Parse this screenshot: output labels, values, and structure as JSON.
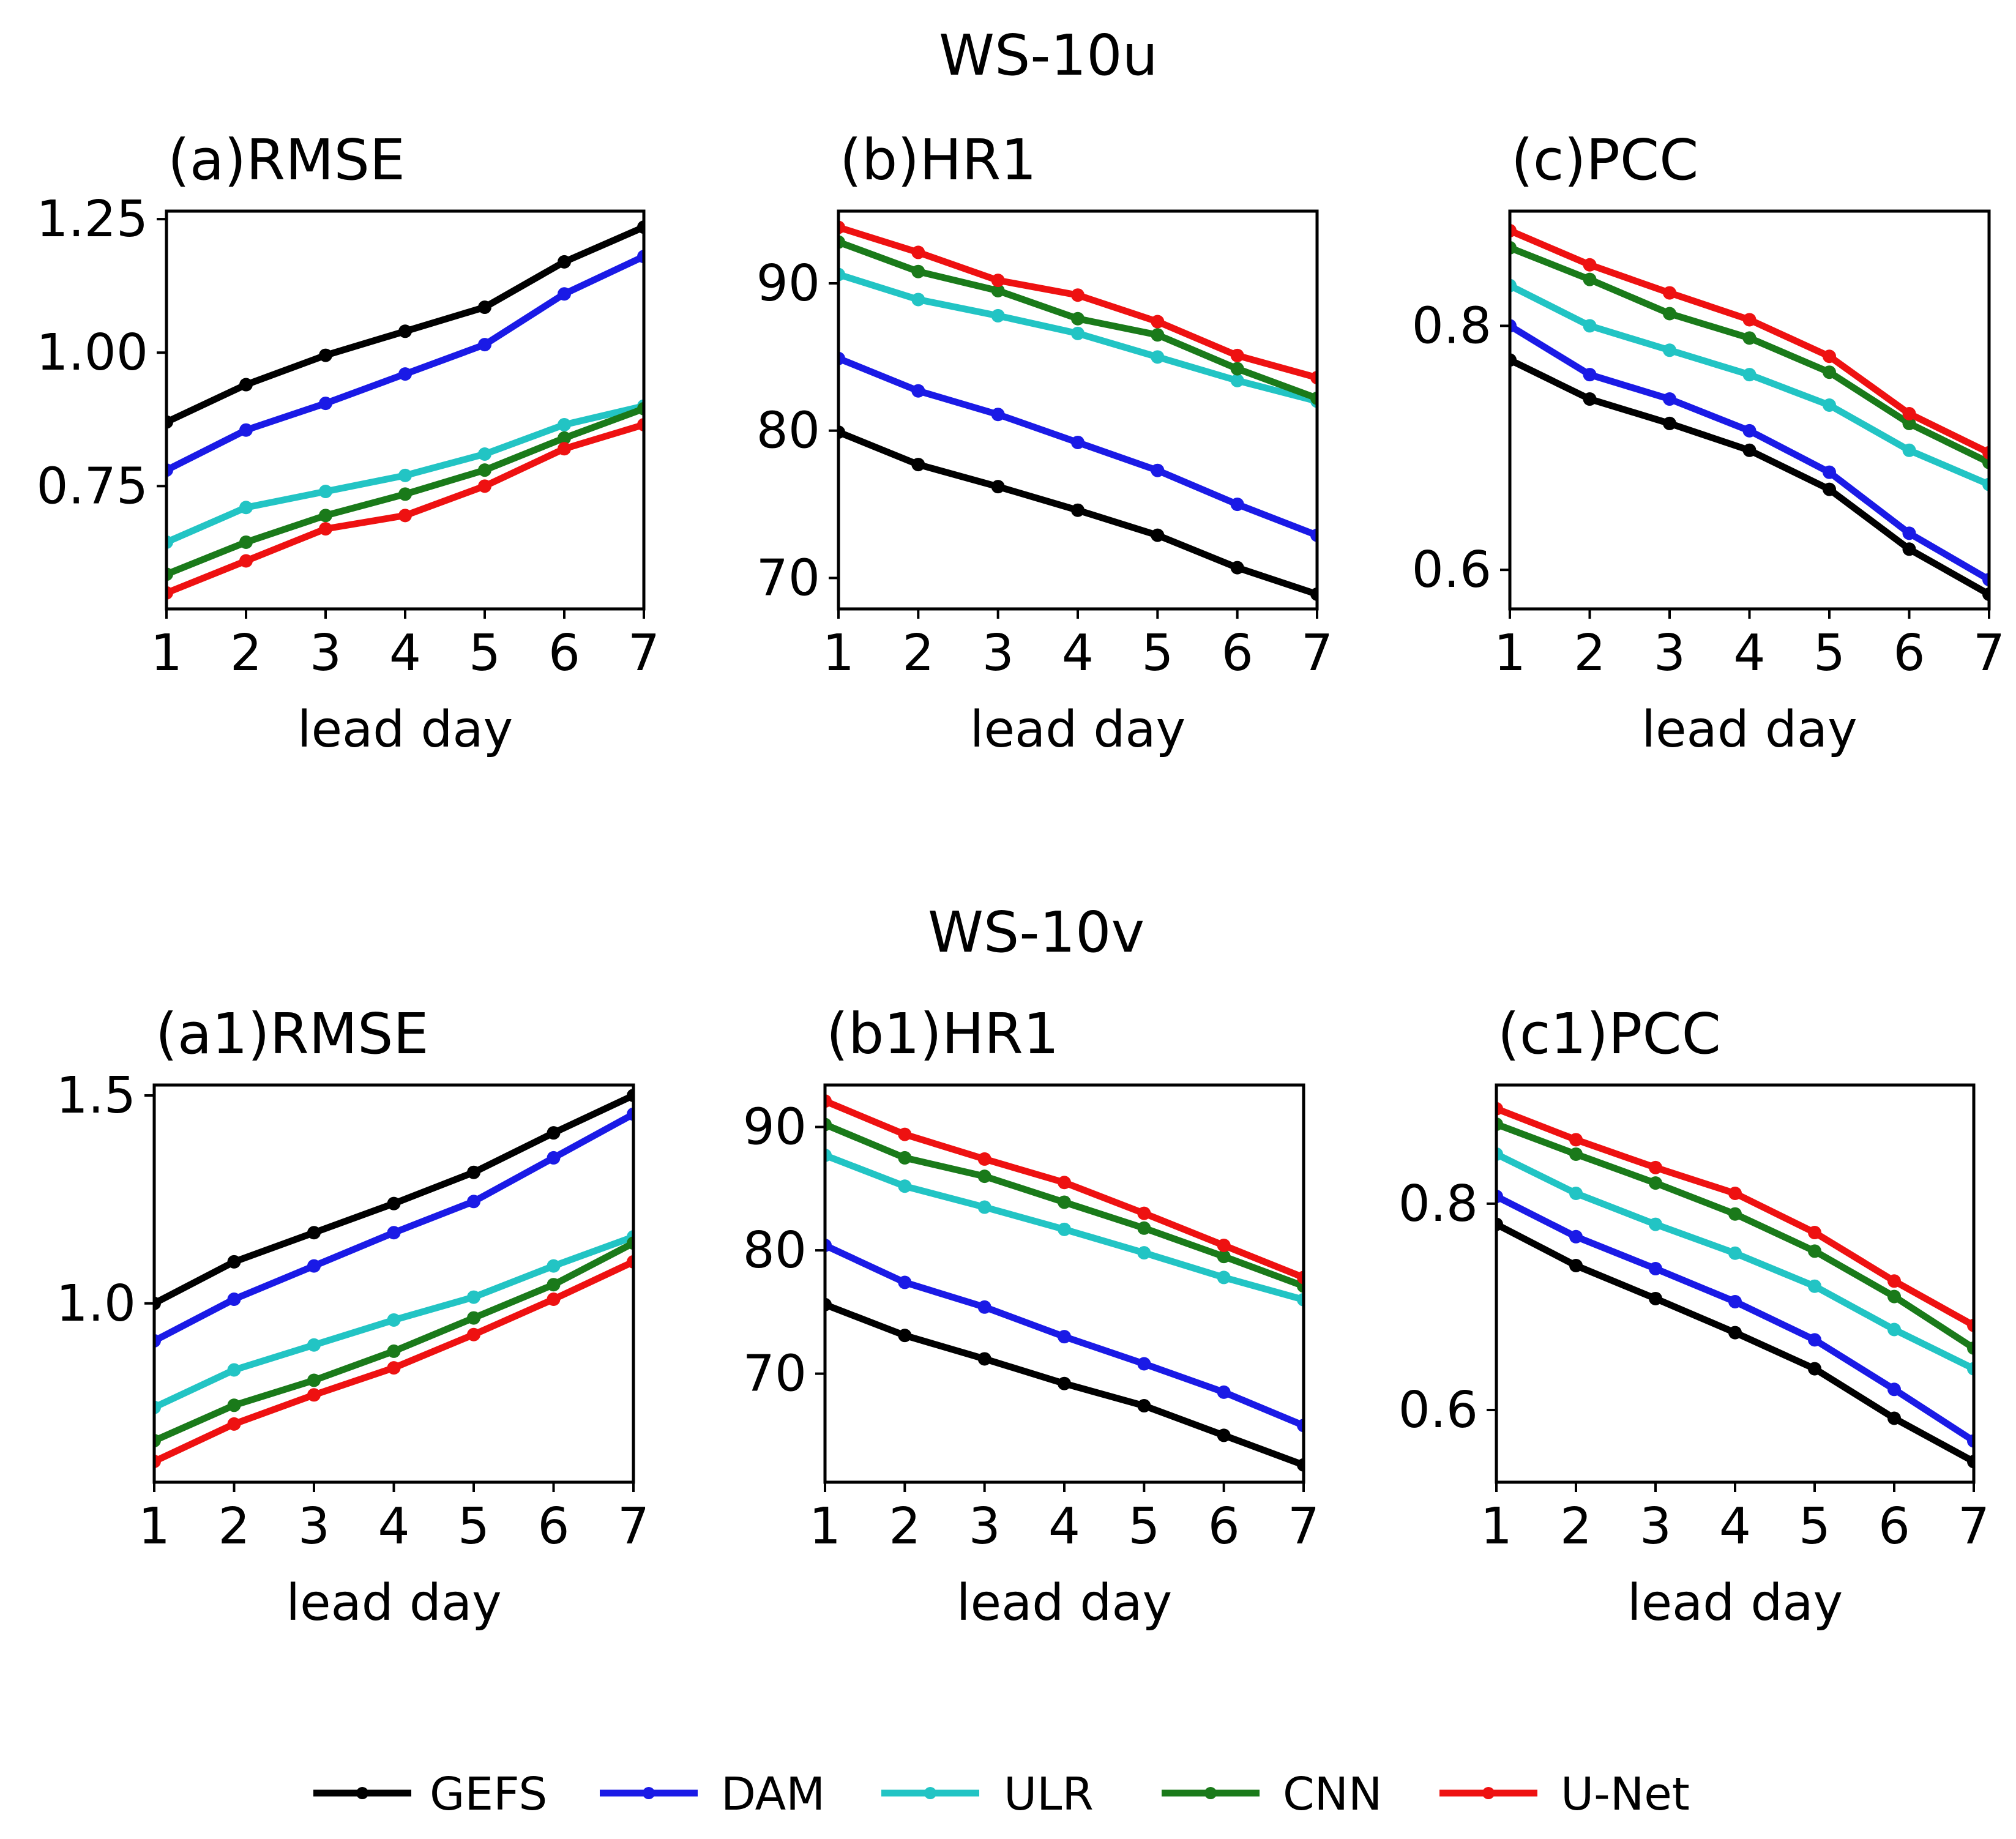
{
  "figure": {
    "rows": [
      {
        "title": "WS-10u"
      },
      {
        "title": "WS-10v"
      }
    ]
  },
  "colors": {
    "GEFS": "#000000",
    "DAM": "#1a1ae6",
    "ULR": "#22c4c4",
    "CNN": "#1a7a1a",
    "U-Net": "#ee1111"
  },
  "legend": {
    "items": [
      "GEFS",
      "DAM",
      "ULR",
      "CNN",
      "U-Net"
    ]
  },
  "chart_data": [
    {
      "type": "line",
      "title": "(a)RMSE",
      "group": "WS-10u",
      "xlabel": "lead day",
      "ylabel": "",
      "x": [
        1,
        2,
        3,
        4,
        5,
        6,
        7
      ],
      "xticks": [
        "1",
        "2",
        "3",
        "4",
        "5",
        "6",
        "7"
      ],
      "yticks": [
        0.75,
        1.0,
        1.25
      ],
      "ytick_labels": [
        "0.75",
        "1.00",
        "1.25"
      ],
      "ylim": [
        0.52,
        1.265
      ],
      "series": [
        {
          "name": "GEFS",
          "values": [
            0.87,
            0.94,
            0.995,
            1.04,
            1.085,
            1.17,
            1.235
          ]
        },
        {
          "name": "DAM",
          "values": [
            0.78,
            0.855,
            0.905,
            0.96,
            1.015,
            1.11,
            1.18
          ]
        },
        {
          "name": "ULR",
          "values": [
            0.645,
            0.71,
            0.74,
            0.77,
            0.81,
            0.865,
            0.9
          ]
        },
        {
          "name": "CNN",
          "values": [
            0.585,
            0.645,
            0.695,
            0.735,
            0.78,
            0.84,
            0.895
          ]
        },
        {
          "name": "U-Net",
          "values": [
            0.55,
            0.61,
            0.67,
            0.695,
            0.75,
            0.82,
            0.865
          ]
        }
      ]
    },
    {
      "type": "line",
      "title": "(b)HR1",
      "group": "WS-10u",
      "xlabel": "lead day",
      "ylabel": "",
      "x": [
        1,
        2,
        3,
        4,
        5,
        6,
        7
      ],
      "xticks": [
        "1",
        "2",
        "3",
        "4",
        "5",
        "6",
        "7"
      ],
      "yticks": [
        70,
        80,
        90
      ],
      "ytick_labels": [
        "70",
        "80",
        "90"
      ],
      "ylim": [
        67.9,
        94.9
      ],
      "series": [
        {
          "name": "GEFS",
          "values": [
            79.9,
            77.7,
            76.2,
            74.6,
            72.9,
            70.7,
            68.9
          ]
        },
        {
          "name": "DAM",
          "values": [
            84.9,
            82.7,
            81.1,
            79.2,
            77.3,
            75.0,
            72.9
          ]
        },
        {
          "name": "ULR",
          "values": [
            90.6,
            88.9,
            87.8,
            86.6,
            85.0,
            83.4,
            82.0
          ]
        },
        {
          "name": "CNN",
          "values": [
            92.8,
            90.8,
            89.5,
            87.6,
            86.5,
            84.2,
            82.2
          ]
        },
        {
          "name": "U-Net",
          "values": [
            93.8,
            92.1,
            90.2,
            89.2,
            87.4,
            85.1,
            83.6
          ]
        }
      ]
    },
    {
      "type": "line",
      "title": "(c)PCC",
      "group": "WS-10u",
      "xlabel": "lead day",
      "ylabel": "",
      "x": [
        1,
        2,
        3,
        4,
        5,
        6,
        7
      ],
      "xticks": [
        "1",
        "2",
        "3",
        "4",
        "5",
        "6",
        "7"
      ],
      "yticks": [
        0.6,
        0.8
      ],
      "ytick_labels": [
        "0.6",
        "0.8"
      ],
      "ylim": [
        0.568,
        0.894
      ],
      "series": [
        {
          "name": "GEFS",
          "values": [
            0.772,
            0.74,
            0.72,
            0.698,
            0.666,
            0.617,
            0.58
          ]
        },
        {
          "name": "DAM",
          "values": [
            0.8,
            0.76,
            0.74,
            0.714,
            0.68,
            0.63,
            0.592
          ]
        },
        {
          "name": "ULR",
          "values": [
            0.833,
            0.8,
            0.78,
            0.76,
            0.735,
            0.698,
            0.67
          ]
        },
        {
          "name": "CNN",
          "values": [
            0.864,
            0.838,
            0.81,
            0.79,
            0.762,
            0.72,
            0.688
          ]
        },
        {
          "name": "U-Net",
          "values": [
            0.878,
            0.85,
            0.827,
            0.805,
            0.775,
            0.728,
            0.696
          ]
        }
      ]
    },
    {
      "type": "line",
      "title": "(a1)RMSE",
      "group": "WS-10v",
      "xlabel": "lead day",
      "ylabel": "",
      "x": [
        1,
        2,
        3,
        4,
        5,
        6,
        7
      ],
      "xticks": [
        "1",
        "2",
        "3",
        "4",
        "5",
        "6",
        "7"
      ],
      "yticks": [
        1.0,
        1.5
      ],
      "ytick_labels": [
        "1.0",
        "1.5"
      ],
      "ylim": [
        0.57,
        1.525
      ],
      "series": [
        {
          "name": "GEFS",
          "values": [
            1.0,
            1.1,
            1.17,
            1.24,
            1.315,
            1.41,
            1.5
          ]
        },
        {
          "name": "DAM",
          "values": [
            0.91,
            1.01,
            1.09,
            1.17,
            1.245,
            1.35,
            1.455
          ]
        },
        {
          "name": "ULR",
          "values": [
            0.75,
            0.84,
            0.9,
            0.96,
            1.015,
            1.09,
            1.16
          ]
        },
        {
          "name": "CNN",
          "values": [
            0.67,
            0.755,
            0.815,
            0.885,
            0.965,
            1.045,
            1.145
          ]
        },
        {
          "name": "U-Net",
          "values": [
            0.62,
            0.71,
            0.78,
            0.845,
            0.925,
            1.01,
            1.1
          ]
        }
      ]
    },
    {
      "type": "line",
      "title": "(b1)HR1",
      "group": "WS-10v",
      "xlabel": "lead day",
      "ylabel": "",
      "x": [
        1,
        2,
        3,
        4,
        5,
        6,
        7
      ],
      "xticks": [
        "1",
        "2",
        "3",
        "4",
        "5",
        "6",
        "7"
      ],
      "yticks": [
        70,
        80,
        90
      ],
      "ytick_labels": [
        "70",
        "80",
        "90"
      ],
      "ylim": [
        61.2,
        93.4
      ],
      "series": [
        {
          "name": "GEFS",
          "values": [
            75.6,
            73.1,
            71.2,
            69.2,
            67.4,
            65.0,
            62.6
          ]
        },
        {
          "name": "DAM",
          "values": [
            80.4,
            77.4,
            75.4,
            73.0,
            70.8,
            68.5,
            65.8
          ]
        },
        {
          "name": "ULR",
          "values": [
            87.7,
            85.2,
            83.5,
            81.7,
            79.8,
            77.8,
            76.0
          ]
        },
        {
          "name": "CNN",
          "values": [
            90.2,
            87.5,
            86.0,
            83.9,
            81.8,
            79.5,
            77.1
          ]
        },
        {
          "name": "U-Net",
          "values": [
            92.1,
            89.4,
            87.4,
            85.5,
            83.0,
            80.4,
            77.8
          ]
        }
      ]
    },
    {
      "type": "line",
      "title": "(c1)PCC",
      "group": "WS-10v",
      "xlabel": "lead day",
      "ylabel": "",
      "x": [
        1,
        2,
        3,
        4,
        5,
        6,
        7
      ],
      "xticks": [
        "1",
        "2",
        "3",
        "4",
        "5",
        "6",
        "7"
      ],
      "yticks": [
        0.6,
        0.8
      ],
      "ytick_labels": [
        "0.6",
        "0.8"
      ],
      "ylim": [
        0.53,
        0.915
      ],
      "series": [
        {
          "name": "GEFS",
          "values": [
            0.78,
            0.74,
            0.708,
            0.675,
            0.64,
            0.592,
            0.55
          ]
        },
        {
          "name": "DAM",
          "values": [
            0.807,
            0.768,
            0.737,
            0.705,
            0.668,
            0.62,
            0.57
          ]
        },
        {
          "name": "ULR",
          "values": [
            0.848,
            0.81,
            0.78,
            0.752,
            0.72,
            0.678,
            0.64
          ]
        },
        {
          "name": "CNN",
          "values": [
            0.877,
            0.848,
            0.82,
            0.79,
            0.754,
            0.71,
            0.66
          ]
        },
        {
          "name": "U-Net",
          "values": [
            0.892,
            0.862,
            0.835,
            0.81,
            0.772,
            0.725,
            0.682
          ]
        }
      ]
    }
  ]
}
